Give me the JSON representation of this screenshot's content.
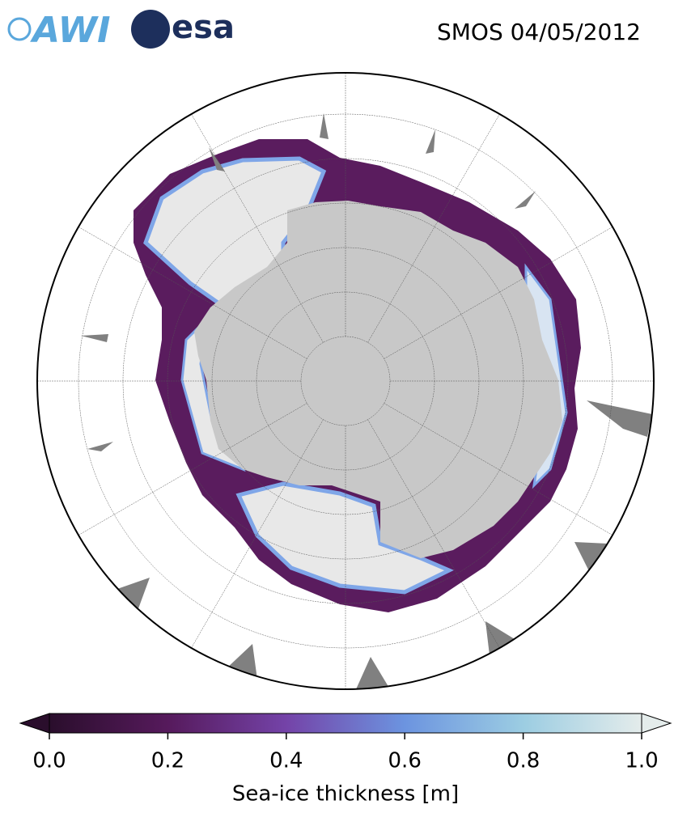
{
  "logos": {
    "awi": "AWI",
    "esa": "esa"
  },
  "title": "SMOS 04/05/2012",
  "colorbar": {
    "label": "Sea-ice thickness [m]",
    "lim": [
      0,
      1
    ],
    "ticks": [
      {
        "value": 0,
        "label": "0.0"
      },
      {
        "value": 0.2,
        "label": "0.2"
      },
      {
        "value": 0.4,
        "label": "0.4"
      },
      {
        "value": 0.6,
        "label": "0.6"
      },
      {
        "value": 0.8,
        "label": "0.8"
      },
      {
        "value": 1,
        "label": "1.0"
      }
    ]
  }
}
